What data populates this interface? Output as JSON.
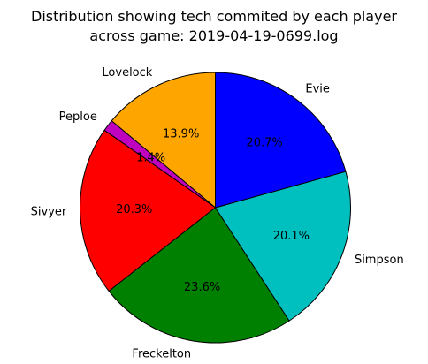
{
  "chart_data": {
    "type": "pie",
    "title_lines": [
      "Distribution showing tech commited by each player",
      "across game: 2019-04-19-0699.log"
    ],
    "start_angle_deg": 90,
    "direction": "counterclockwise",
    "legend": "none",
    "slices": [
      {
        "label": "Lovelock",
        "value": 13.9,
        "pct_label": "13.9%",
        "color": "#ffa500"
      },
      {
        "label": "Peploe",
        "value": 1.4,
        "pct_label": "1.4%",
        "color": "#bf00bf"
      },
      {
        "label": "Sivyer",
        "value": 20.3,
        "pct_label": "20.3%",
        "color": "#ff0000"
      },
      {
        "label": "Freckelton",
        "value": 23.6,
        "pct_label": "23.6%",
        "color": "#008000"
      },
      {
        "label": "Simpson",
        "value": 20.1,
        "pct_label": "20.1%",
        "color": "#00bfbf"
      },
      {
        "label": "Evie",
        "value": 20.7,
        "pct_label": "20.7%",
        "color": "#0000ff"
      }
    ]
  }
}
